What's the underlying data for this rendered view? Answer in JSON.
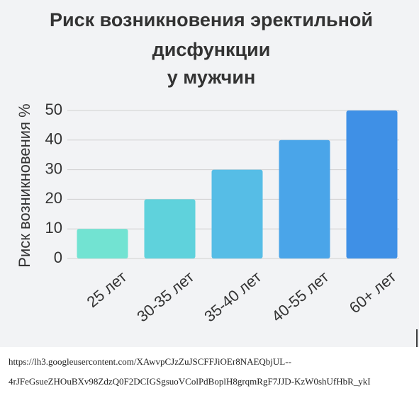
{
  "chart_data": {
    "type": "bar",
    "title": [
      "Риск возникновения эректильной",
      "дисфункции",
      "у мужчин"
    ],
    "y_label": "Риск возникновения %",
    "categories": [
      "25 лет",
      "30-35 лет",
      "35-40 лет",
      "40-55 лет",
      "60+ лет"
    ],
    "values": [
      10,
      20,
      30,
      40,
      50
    ],
    "colors": [
      "#72e3d2",
      "#5fd2dc",
      "#56bde6",
      "#4aa5e9",
      "#3f90e6"
    ],
    "ylim": [
      0,
      50
    ],
    "yticks": [
      0,
      10,
      20,
      30,
      40,
      50
    ],
    "grid": true
  },
  "source": [
    "https://lh3.googleusercontent.com/XAwvpCJzZuJSCFFJiOEr8NAEQbjUL--",
    "4rJFeGsueZHOuBXv98ZdzQ0F2DCIGSgsuoVColPdBoplH8grqmRgF7JJD-KzW0shUfHbR_ykI"
  ]
}
